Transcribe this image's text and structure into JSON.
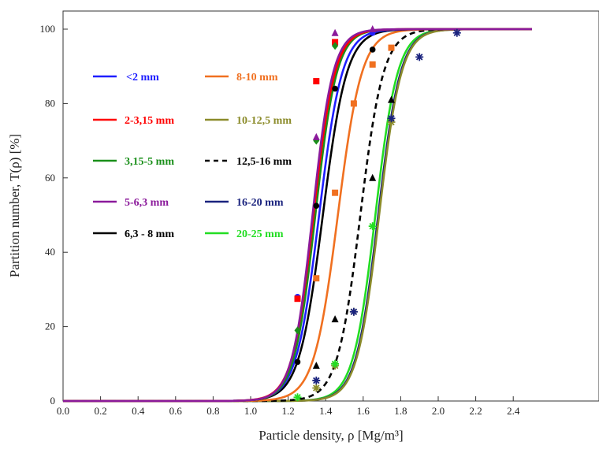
{
  "chart_data": {
    "type": "line",
    "xlabel": "Particle density, ρ [Mg/m³]",
    "ylabel": "Partition number, T(ρ) [%]",
    "xlim": [
      0.0,
      2.5
    ],
    "ylim": [
      0,
      100
    ],
    "x_ticks": [
      "0.0",
      "0.2",
      "0.4",
      "0.6",
      "0.8",
      "1.0",
      "1.2",
      "1.4",
      "1.6",
      "1.8",
      "2.0",
      "2.2",
      "2.4"
    ],
    "y_ticks": [
      "0",
      "20",
      "40",
      "60",
      "80",
      "100"
    ],
    "grid": false,
    "legend_position": "inside-left",
    "series": [
      {
        "name": "<2 mm",
        "color": "#1f1fff",
        "dash": "solid",
        "ep": 0.135,
        "points": [
          [
            1.25,
            28
          ],
          [
            1.45,
            96
          ],
          [
            1.65,
            99
          ]
        ],
        "marker": "circle"
      },
      {
        "name": "2-3,15 mm",
        "color": "#ff0000",
        "dash": "solid",
        "ep": 0.125,
        "points": [
          [
            1.25,
            27.5
          ],
          [
            1.35,
            86
          ],
          [
            1.45,
            96.5
          ]
        ],
        "marker": "square"
      },
      {
        "name": "3,15-5 mm",
        "color": "#1a8f1a",
        "dash": "solid",
        "ep": 0.125,
        "points": [
          [
            1.25,
            19
          ],
          [
            1.35,
            70
          ],
          [
            1.45,
            95.5
          ]
        ],
        "marker": "diamond"
      },
      {
        "name": "5-6,3 mm",
        "color": "#8b1a9b",
        "dash": "solid",
        "ep": 0.12,
        "points": [
          [
            1.35,
            71
          ],
          [
            1.45,
            99
          ],
          [
            1.65,
            100
          ]
        ],
        "marker": "triangle"
      },
      {
        "name": "6,3 - 8 mm",
        "color": "#000000",
        "dash": "solid",
        "ep": 0.14,
        "points": [
          [
            1.25,
            10.5
          ],
          [
            1.35,
            52.5
          ],
          [
            1.45,
            84
          ],
          [
            1.65,
            94.5
          ]
        ],
        "marker": "circle"
      },
      {
        "name": "8-10 mm",
        "color": "#f07020",
        "dash": "solid",
        "ep": 0.14,
        "points": [
          [
            1.35,
            33
          ],
          [
            1.45,
            56
          ],
          [
            1.55,
            80
          ],
          [
            1.65,
            90.5
          ],
          [
            1.75,
            95
          ]
        ],
        "marker": "square"
      },
      {
        "name": "10-12,5 mm",
        "color": "#8b8b2a",
        "dash": "solid",
        "ep": 0.13,
        "points": [
          [
            1.35,
            3.5
          ],
          [
            1.45,
            9.5
          ],
          [
            1.55,
            24
          ],
          [
            1.75,
            75
          ]
        ],
        "marker": "star"
      },
      {
        "name": "12,5-16 mm",
        "color": "#000000",
        "dash": "dashed",
        "ep": 0.135,
        "points": [
          [
            1.35,
            9.5
          ],
          [
            1.45,
            22
          ],
          [
            1.65,
            60
          ],
          [
            1.75,
            81
          ]
        ],
        "marker": "triangle"
      },
      {
        "name": "16-20 mm",
        "color": "#1a237e",
        "dash": "solid",
        "ep": 0.13,
        "points": [
          [
            1.35,
            5.5
          ],
          [
            1.55,
            24
          ],
          [
            1.75,
            76
          ],
          [
            1.9,
            92.5
          ],
          [
            2.1,
            99
          ]
        ],
        "marker": "star"
      },
      {
        "name": "20-25 mm",
        "color": "#22dd22",
        "dash": "solid",
        "ep": 0.13,
        "points": [
          [
            1.25,
            1
          ],
          [
            1.45,
            10
          ],
          [
            1.65,
            47
          ]
        ],
        "marker": "star"
      }
    ],
    "legend_layout": [
      {
        "label": "<2 mm",
        "series": 0
      },
      {
        "label": "8-10 mm",
        "series": 5
      },
      {
        "label": "2-3,15 mm",
        "series": 1
      },
      {
        "label": "10-12,5 mm",
        "series": 6
      },
      {
        "label": "3,15-5 mm",
        "series": 2
      },
      {
        "label": "12,5-16 mm",
        "series": 7
      },
      {
        "label": "5-6,3 mm",
        "series": 3
      },
      {
        "label": "16-20 mm",
        "series": 8
      },
      {
        "label": "6,3 - 8 mm",
        "series": 4
      },
      {
        "label": "20-25 mm",
        "series": 9
      }
    ],
    "d50": [
      1.365,
      1.335,
      1.345,
      1.33,
      1.385,
      1.465,
      1.685,
      1.585,
      1.68,
      1.665
    ]
  }
}
